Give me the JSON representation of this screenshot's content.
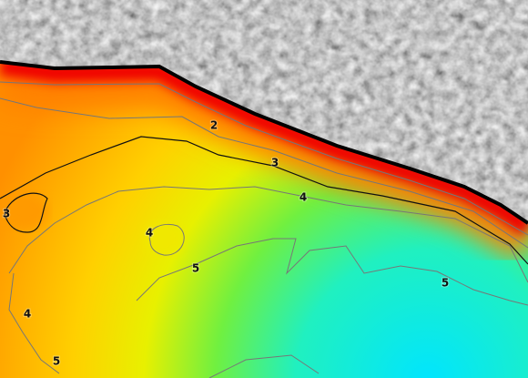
{
  "contour_labels": [
    "2",
    "3",
    "4",
    "3",
    "4",
    "5",
    "5",
    "4",
    "5"
  ]
}
